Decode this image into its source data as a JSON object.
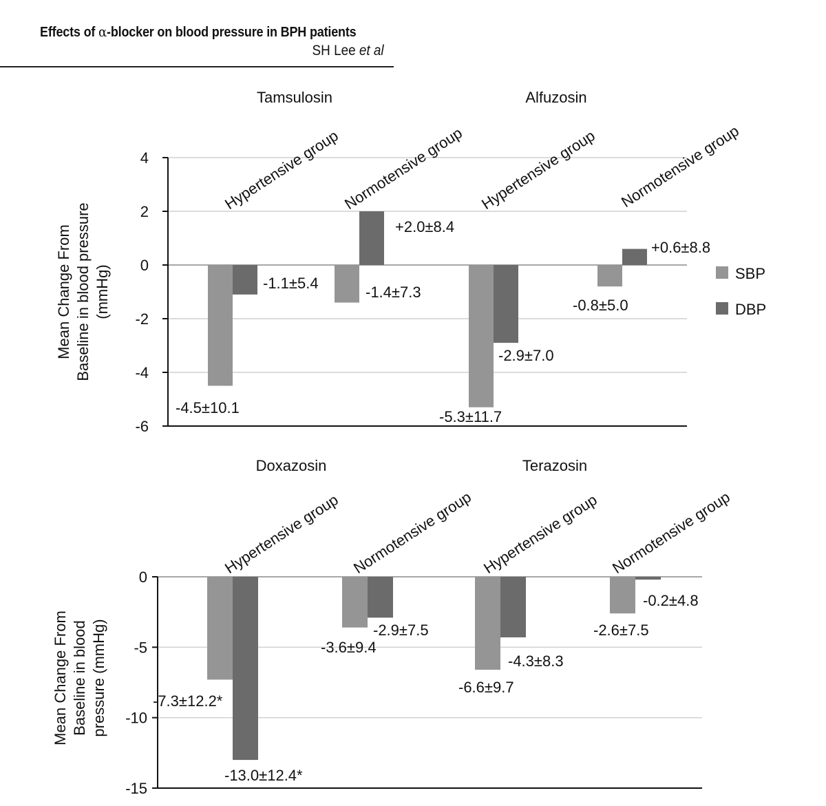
{
  "header": {
    "title_prefix": "Effects of ",
    "title_symbol": "α",
    "title_suffix": "-blocker on blood pressure in BPH patients",
    "author": "SH Lee ",
    "author_suffix": "et al"
  },
  "colors": {
    "sbp": "#959595",
    "dbp": "#6b6b6b",
    "grid": "#cfcfcf",
    "axis": "#111111"
  },
  "legend": {
    "placement": "right",
    "items": [
      "SBP",
      "DBP"
    ]
  },
  "chart_data": [
    {
      "type": "bar",
      "ylabel": [
        "Mean Change From",
        "Baseline in blood pressure",
        "(mmHg)"
      ],
      "ylim": [
        -6,
        4
      ],
      "yticks": [
        4,
        2,
        0,
        -2,
        -4,
        -6
      ],
      "grid": true,
      "panels": [
        {
          "title": "Tamsulosin",
          "groups": [
            {
              "name": "Hypertensive group",
              "sbp": -4.5,
              "dbp": -1.1,
              "sbp_label": "-4.5±10.1",
              "dbp_label": "-1.1±5.4"
            },
            {
              "name": "Normotensive group",
              "sbp": -1.4,
              "dbp": 2.0,
              "sbp_label": "-1.4±7.3",
              "dbp_label": "+2.0±8.4"
            }
          ]
        },
        {
          "title": "Alfuzosin",
          "groups": [
            {
              "name": "Hypertensive group",
              "sbp": -5.3,
              "dbp": -2.9,
              "sbp_label": "-5.3±11.7",
              "dbp_label": "-2.9±7.0"
            },
            {
              "name": "Normotensive group",
              "sbp": -0.8,
              "dbp": 0.6,
              "sbp_label": "-0.8±5.0",
              "dbp_label": "+0.6±8.8"
            }
          ]
        }
      ]
    },
    {
      "type": "bar",
      "ylabel": [
        "Mean Change From",
        "Baseline in blood",
        "pressure (mmHg)"
      ],
      "ylim": [
        -15,
        0
      ],
      "yticks": [
        0,
        -5,
        -10,
        -15
      ],
      "grid": true,
      "panels": [
        {
          "title": "Doxazosin",
          "groups": [
            {
              "name": "Hypertensive group",
              "sbp": -7.3,
              "dbp": -13.0,
              "sbp_label": "-7.3±12.2*",
              "dbp_label": "-13.0±12.4*"
            },
            {
              "name": "Normotensive group",
              "sbp": -3.6,
              "dbp": -2.9,
              "sbp_label": "-3.6±9.4",
              "dbp_label": "-2.9±7.5"
            }
          ]
        },
        {
          "title": "Terazosin",
          "groups": [
            {
              "name": "Hypertensive group",
              "sbp": -6.6,
              "dbp": -4.3,
              "sbp_label": "-6.6±9.7",
              "dbp_label": "-4.3±8.3"
            },
            {
              "name": "Normotensive group",
              "sbp": -2.6,
              "dbp": -0.2,
              "sbp_label": "-2.6±7.5",
              "dbp_label": "-0.2±4.8"
            }
          ]
        }
      ]
    }
  ]
}
